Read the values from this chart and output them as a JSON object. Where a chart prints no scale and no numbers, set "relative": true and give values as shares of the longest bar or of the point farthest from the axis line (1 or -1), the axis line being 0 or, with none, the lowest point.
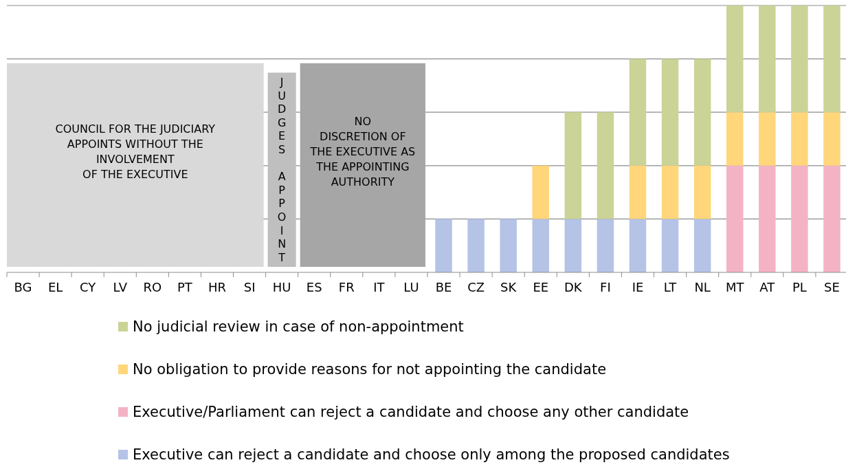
{
  "chart_data": {
    "type": "bar",
    "stacked": true,
    "relative": true,
    "grid": "y",
    "legend": "bottom",
    "categories": [
      "BG",
      "EL",
      "CY",
      "LV",
      "RO",
      "PT",
      "HR",
      "SI",
      "HU",
      "ES",
      "FR",
      "IT",
      "LU",
      "BE",
      "CZ",
      "SK",
      "EE",
      "DK",
      "FI",
      "IE",
      "LT",
      "NL",
      "MT",
      "AT",
      "PL",
      "SE"
    ],
    "series": [
      {
        "name": "Executive can reject a candidate and choose only among the proposed candidates",
        "color": "#b4c3e6",
        "values": [
          null,
          null,
          null,
          null,
          null,
          null,
          null,
          null,
          null,
          null,
          null,
          null,
          null,
          0.2,
          0.2,
          0.2,
          0.2,
          0.2,
          0.2,
          0.2,
          0.2,
          0.2,
          null,
          null,
          null,
          null
        ]
      },
      {
        "name": "Executive/Parliament can reject a candidate and choose any other candidate",
        "color": "#f4b3c5",
        "values": [
          null,
          null,
          null,
          null,
          null,
          null,
          null,
          null,
          null,
          null,
          null,
          null,
          null,
          null,
          null,
          null,
          null,
          null,
          null,
          null,
          null,
          null,
          0.4,
          0.4,
          0.4,
          0.4
        ]
      },
      {
        "name": "No obligation to provide reasons for not appointing the candidate",
        "color": "#ffd67a",
        "values": [
          null,
          null,
          null,
          null,
          null,
          null,
          null,
          null,
          null,
          null,
          null,
          null,
          null,
          null,
          null,
          null,
          0.2,
          null,
          null,
          0.2,
          0.2,
          0.2,
          0.2,
          0.2,
          0.2,
          0.2
        ]
      },
      {
        "name": "No judicial review in case of non-appointment",
        "color": "#cbd396",
        "values": [
          null,
          null,
          null,
          null,
          null,
          null,
          null,
          null,
          null,
          null,
          null,
          null,
          null,
          null,
          null,
          null,
          null,
          0.4,
          0.4,
          0.4,
          0.4,
          0.4,
          0.4,
          0.4,
          0.4,
          0.4
        ]
      }
    ],
    "bands": [
      {
        "axis": "x",
        "from": "BG",
        "to": "SI",
        "label": "COUNCIL FOR THE JUDICIARY\nAPPOINTS WITHOUT THE\nINVOLVEMENT\nOF THE EXECUTIVE",
        "color": "#d9d9d9"
      },
      {
        "axis": "x",
        "from": "HU",
        "to": "HU",
        "label": "JUDGES APPOINT",
        "color": "#bfbfbf"
      },
      {
        "axis": "x",
        "from": "ES",
        "to": "LU",
        "label": "NO\nDISCRETION OF\nTHE EXECUTIVE AS\nTHE APPOINTING\nAUTHORITY",
        "color": "#a6a6a6"
      }
    ]
  }
}
